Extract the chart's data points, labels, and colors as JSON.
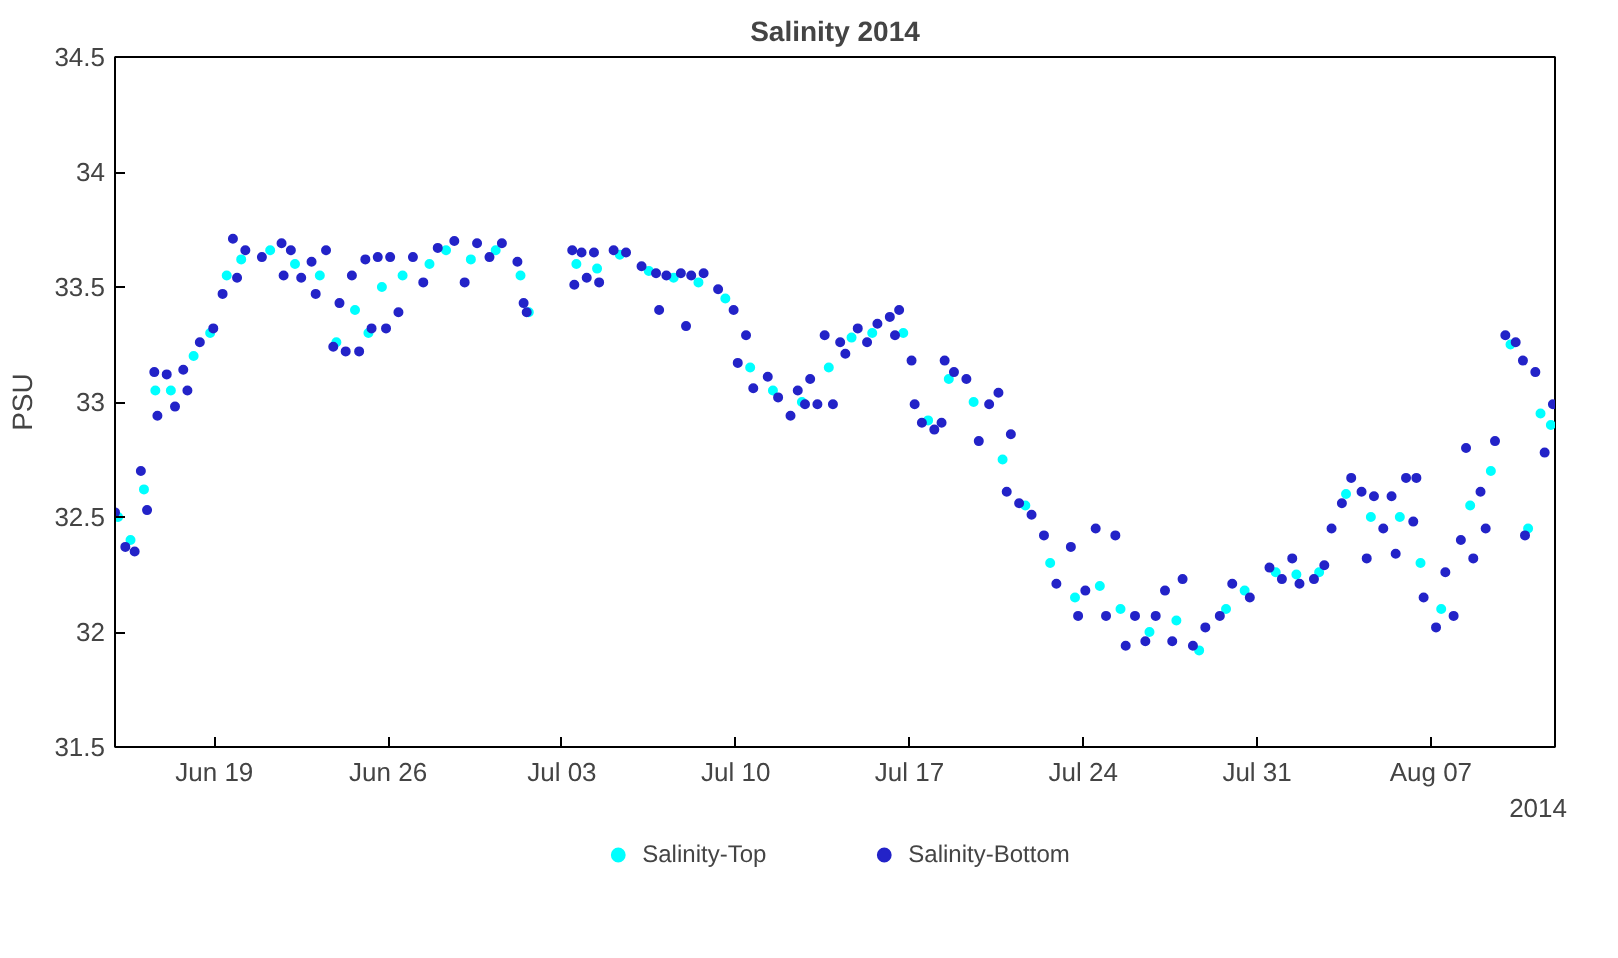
{
  "chart_data": {
    "type": "scatter",
    "title": "Salinity 2014",
    "ylabel": "PSU",
    "marker": "circle",
    "grid": false,
    "legend": "bottom",
    "xlim": [
      "2014-06-15",
      "2014-08-12"
    ],
    "xticks": [
      {
        "value": "2014-06-19",
        "label": "Jun 19"
      },
      {
        "value": "2014-06-26",
        "label": "Jun 26"
      },
      {
        "value": "2014-07-03",
        "label": "Jul 03"
      },
      {
        "value": "2014-07-10",
        "label": "Jul 10"
      },
      {
        "value": "2014-07-17",
        "label": "Jul 17"
      },
      {
        "value": "2014-07-24",
        "label": "Jul 24"
      },
      {
        "value": "2014-07-31",
        "label": "Jul 31"
      },
      {
        "value": "2014-08-07",
        "label": "Aug 07"
      }
    ],
    "ylim": [
      31.5,
      34.5
    ],
    "yticks": [
      31.5,
      32,
      32.5,
      33,
      33.5,
      34,
      34.5
    ],
    "annotations": [
      "2014"
    ],
    "series": [
      {
        "name": "Salinity-Top",
        "color": "#00ffff",
        "x": [
          "2014-06-15T03:00",
          "2014-06-15T15:00",
          "2014-06-16T04:00",
          "2014-06-16T15:00",
          "2014-06-17T06:00",
          "2014-06-18T04:00",
          "2014-06-18T20:00",
          "2014-06-19T12:00",
          "2014-06-20T02:00",
          "2014-06-21T06:00",
          "2014-06-22T06:00",
          "2014-06-23T06:00",
          "2014-06-23T22:00",
          "2014-06-24T16:00",
          "2014-06-25T05:00",
          "2014-06-25T18:00",
          "2014-06-26T14:00",
          "2014-06-27T16:00",
          "2014-06-28T08:00",
          "2014-06-29T08:00",
          "2014-06-30T08:00",
          "2014-07-01T08:00",
          "2014-07-01T16:00",
          "2014-07-02T12:00",
          "2014-07-03T14:00",
          "2014-07-04T10:00",
          "2014-07-05T08:00",
          "2014-07-06T12:00",
          "2014-07-07T12:00",
          "2014-07-08T12:00",
          "2014-07-09T14:00",
          "2014-07-10T14:00",
          "2014-07-11T12:00",
          "2014-07-12T16:00",
          "2014-07-13T18:00",
          "2014-07-14T16:00",
          "2014-07-15T12:00",
          "2014-07-16T18:00",
          "2014-07-17T18:00",
          "2014-07-18T14:00",
          "2014-07-19T14:00",
          "2014-07-20T18:00",
          "2014-07-21T16:00",
          "2014-07-22T16:00",
          "2014-07-23T16:00",
          "2014-07-24T16:00",
          "2014-07-25T12:00",
          "2014-07-26T16:00",
          "2014-07-27T18:00",
          "2014-07-28T16:00",
          "2014-07-29T18:00",
          "2014-07-30T12:00",
          "2014-07-31T18:00",
          "2014-08-01T14:00",
          "2014-08-02T12:00",
          "2014-08-03T14:00",
          "2014-08-04T14:00",
          "2014-08-05T18:00",
          "2014-08-06T14:00",
          "2014-08-07T10:00",
          "2014-08-08T14:00",
          "2014-08-09T10:00",
          "2014-08-10T05:00",
          "2014-08-10T22:00",
          "2014-08-11T10:00",
          "2014-08-11T20:00"
        ],
        "values": [
          32.5,
          32.4,
          32.62,
          33.05,
          33.05,
          33.2,
          33.3,
          33.55,
          33.62,
          33.66,
          33.6,
          33.55,
          33.26,
          33.4,
          33.3,
          33.5,
          33.55,
          33.6,
          33.66,
          33.62,
          33.66,
          33.55,
          33.39,
          null,
          33.6,
          33.58,
          33.64,
          33.57,
          33.54,
          33.52,
          33.45,
          33.15,
          33.05,
          33.0,
          33.15,
          33.28,
          33.3,
          33.3,
          32.92,
          33.1,
          33.0,
          32.75,
          32.55,
          32.3,
          32.15,
          32.2,
          32.1,
          32.0,
          32.05,
          31.92,
          32.1,
          32.18,
          32.26,
          32.25,
          32.26,
          32.6,
          32.5,
          32.5,
          32.3,
          32.1,
          32.55,
          32.7,
          33.25,
          32.45,
          32.95,
          32.9
        ]
      },
      {
        "name": "Salinity-Bottom",
        "color": "#2323c8",
        "x": [
          "2014-06-15T00:00",
          "2014-06-15T10:00",
          "2014-06-15T19:00",
          "2014-06-16T01:00",
          "2014-06-16T07:00",
          "2014-06-16T14:00",
          "2014-06-16T17:00",
          "2014-06-17T02:00",
          "2014-06-17T10:00",
          "2014-06-17T18:00",
          "2014-06-17T22:00",
          "2014-06-18T10:00",
          "2014-06-18T23:00",
          "2014-06-19T08:00",
          "2014-06-19T18:00",
          "2014-06-19T22:00",
          "2014-06-20T06:00",
          "2014-06-20T22:00",
          "2014-06-21T17:00",
          "2014-06-21T19:00",
          "2014-06-22T02:00",
          "2014-06-22T12:00",
          "2014-06-22T22:00",
          "2014-06-23T02:00",
          "2014-06-23T12:00",
          "2014-06-23T19:00",
          "2014-06-24T01:00",
          "2014-06-24T07:00",
          "2014-06-24T13:00",
          "2014-06-24T20:00",
          "2014-06-25T02:00",
          "2014-06-25T08:00",
          "2014-06-25T14:00",
          "2014-06-25T22:00",
          "2014-06-26T02:00",
          "2014-06-26T10:00",
          "2014-06-27T00:00",
          "2014-06-27T10:00",
          "2014-06-28T00:00",
          "2014-06-28T16:00",
          "2014-06-29T02:00",
          "2014-06-29T14:00",
          "2014-06-30T02:00",
          "2014-06-30T14:00",
          "2014-07-01T05:00",
          "2014-07-01T11:00",
          "2014-07-01T14:00",
          "2014-07-02T12:00",
          "2014-07-03T10:00",
          "2014-07-03T12:00",
          "2014-07-03T19:00",
          "2014-07-04T00:00",
          "2014-07-04T07:00",
          "2014-07-04T12:00",
          "2014-07-05T02:00",
          "2014-07-05T14:00",
          "2014-07-06T05:00",
          "2014-07-06T19:00",
          "2014-07-06T22:00",
          "2014-07-07T05:00",
          "2014-07-07T19:00",
          "2014-07-08T00:00",
          "2014-07-08T05:00",
          "2014-07-08T17:00",
          "2014-07-09T07:00",
          "2014-07-09T22:00",
          "2014-07-10T02:00",
          "2014-07-10T10:00",
          "2014-07-10T17:00",
          "2014-07-11T07:00",
          "2014-07-11T17:00",
          "2014-07-12T05:00",
          "2014-07-12T12:00",
          "2014-07-12T19:00",
          "2014-07-13T00:00",
          "2014-07-13T07:00",
          "2014-07-13T14:00",
          "2014-07-13T22:00",
          "2014-07-14T05:00",
          "2014-07-14T10:00",
          "2014-07-14T22:00",
          "2014-07-15T07:00",
          "2014-07-15T17:00",
          "2014-07-16T05:00",
          "2014-07-16T10:00",
          "2014-07-16T14:00",
          "2014-07-17T02:00",
          "2014-07-17T05:00",
          "2014-07-17T12:00",
          "2014-07-18T00:00",
          "2014-07-18T07:00",
          "2014-07-18T10:00",
          "2014-07-18T19:00",
          "2014-07-19T07:00",
          "2014-07-19T19:00",
          "2014-07-20T05:00",
          "2014-07-20T14:00",
          "2014-07-20T22:00",
          "2014-07-21T02:00",
          "2014-07-21T10:00",
          "2014-07-21T22:00",
          "2014-07-22T10:00",
          "2014-07-22T22:00",
          "2014-07-23T12:00",
          "2014-07-23T19:00",
          "2014-07-24T02:00",
          "2014-07-24T12:00",
          "2014-07-24T22:00",
          "2014-07-25T07:00",
          "2014-07-25T17:00",
          "2014-07-26T02:00",
          "2014-07-26T12:00",
          "2014-07-26T22:00",
          "2014-07-27T07:00",
          "2014-07-27T14:00",
          "2014-07-28T00:00",
          "2014-07-28T10:00",
          "2014-07-28T22:00",
          "2014-07-29T12:00",
          "2014-07-30T00:00",
          "2014-07-30T17:00",
          "2014-07-31T12:00",
          "2014-08-01T00:00",
          "2014-08-01T10:00",
          "2014-08-01T17:00",
          "2014-08-02T07:00",
          "2014-08-02T17:00",
          "2014-08-03T00:00",
          "2014-08-03T10:00",
          "2014-08-03T19:00",
          "2014-08-04T05:00",
          "2014-08-04T10:00",
          "2014-08-04T17:00",
          "2014-08-05T02:00",
          "2014-08-05T10:00",
          "2014-08-05T14:00",
          "2014-08-06T00:00",
          "2014-08-06T07:00",
          "2014-08-06T10:00",
          "2014-08-06T17:00",
          "2014-08-07T05:00",
          "2014-08-07T14:00",
          "2014-08-07T22:00",
          "2014-08-08T05:00",
          "2014-08-08T10:00",
          "2014-08-08T17:00",
          "2014-08-09T00:00",
          "2014-08-09T05:00",
          "2014-08-09T14:00",
          "2014-08-10T00:00",
          "2014-08-10T10:00",
          "2014-08-10T17:00",
          "2014-08-10T19:00",
          "2014-08-11T05:00",
          "2014-08-11T14:00",
          "2014-08-11T22:00"
        ],
        "values": [
          32.52,
          32.37,
          32.35,
          32.7,
          32.53,
          33.13,
          32.94,
          33.12,
          32.98,
          33.14,
          33.05,
          33.26,
          33.32,
          33.47,
          33.71,
          33.54,
          33.66,
          33.63,
          33.69,
          33.55,
          33.66,
          33.54,
          33.61,
          33.47,
          33.66,
          33.24,
          33.43,
          33.22,
          33.55,
          33.22,
          33.62,
          33.32,
          33.63,
          33.32,
          33.63,
          33.39,
          33.63,
          33.52,
          33.67,
          33.7,
          33.52,
          33.69,
          33.63,
          33.69,
          33.61,
          33.43,
          33.39,
          null,
          33.66,
          33.51,
          33.65,
          33.54,
          33.65,
          33.52,
          33.66,
          33.65,
          33.59,
          33.56,
          33.4,
          33.55,
          33.56,
          33.33,
          33.55,
          33.56,
          33.49,
          33.4,
          33.17,
          33.29,
          33.06,
          33.11,
          33.02,
          32.94,
          33.05,
          32.99,
          33.1,
          32.99,
          33.29,
          32.99,
          33.26,
          33.21,
          33.32,
          33.26,
          33.34,
          33.37,
          33.29,
          33.4,
          33.18,
          32.99,
          32.91,
          32.88,
          32.91,
          33.18,
          33.13,
          33.1,
          32.83,
          32.99,
          33.04,
          32.61,
          32.86,
          32.56,
          32.51,
          32.42,
          32.21,
          32.37,
          32.07,
          32.18,
          32.45,
          32.07,
          32.42,
          31.94,
          32.07,
          31.96,
          32.07,
          32.18,
          31.96,
          32.23,
          31.94,
          32.02,
          32.07,
          32.21,
          32.15,
          32.28,
          32.23,
          32.32,
          32.21,
          32.23,
          32.29,
          32.45,
          32.56,
          32.67,
          32.61,
          32.32,
          32.59,
          32.45,
          32.59,
          32.34,
          32.67,
          32.48,
          32.67,
          32.15,
          32.02,
          32.26,
          32.07,
          32.4,
          32.8,
          32.32,
          32.61,
          32.45,
          32.83,
          33.29,
          33.26,
          33.18,
          32.42,
          33.13,
          32.78,
          32.99
        ]
      }
    ]
  }
}
